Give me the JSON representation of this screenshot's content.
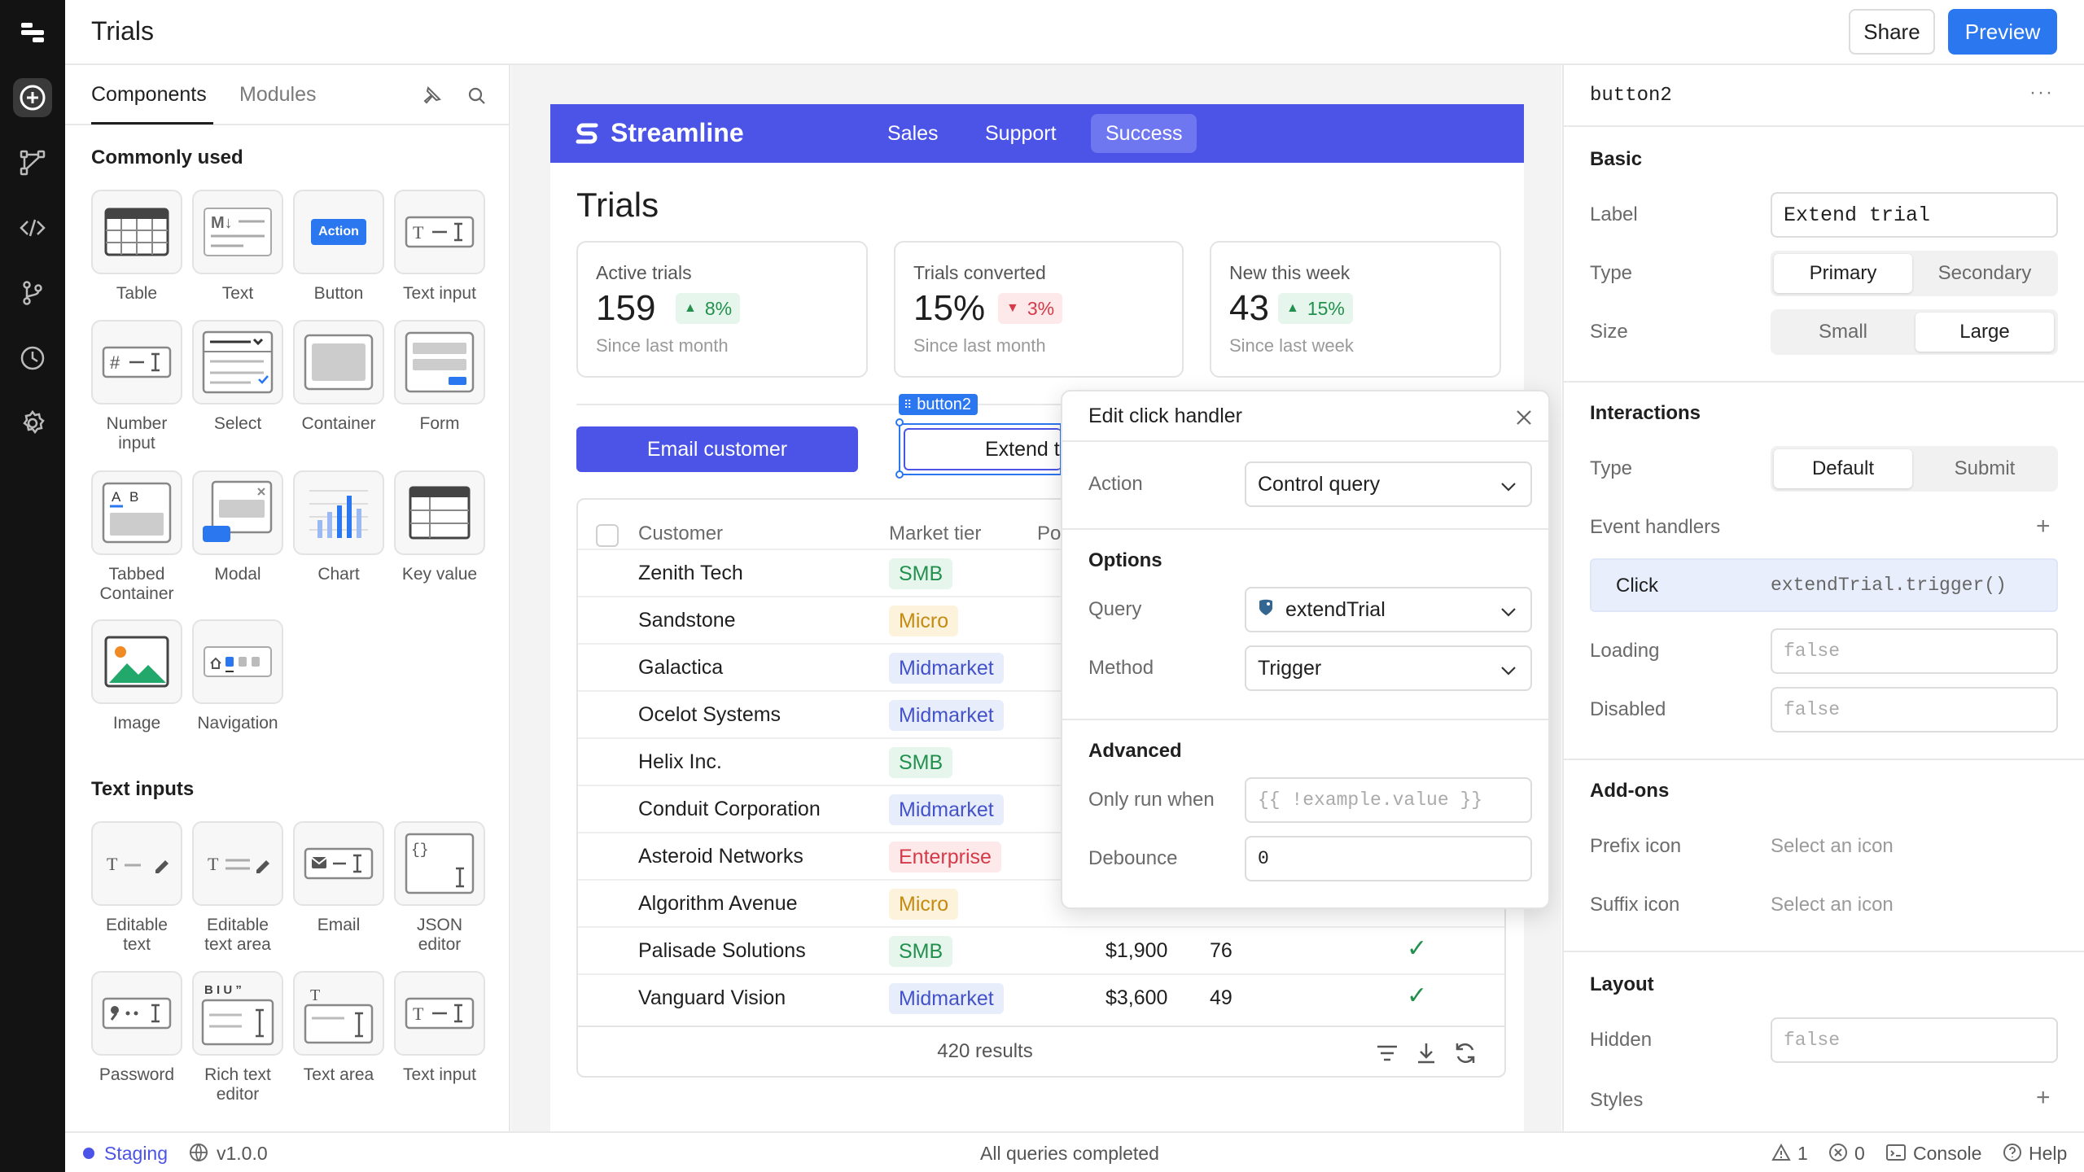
{
  "app": {
    "title": "Trials",
    "share_label": "Share",
    "preview_label": "Preview"
  },
  "rail": {
    "icons": [
      "logo-icon",
      "add-icon",
      "graph-icon",
      "code-icon",
      "branch-icon",
      "history-icon",
      "settings-icon"
    ]
  },
  "left_panel": {
    "tabs": [
      "Components",
      "Modules"
    ],
    "commonly_used_title": "Commonly used",
    "commonly_used": [
      "Table",
      "Text",
      "Button",
      "Text input",
      "Number input",
      "Select",
      "Container",
      "Form",
      "Tabbed Container",
      "Modal",
      "Chart",
      "Key value",
      "Image",
      "Navigation"
    ],
    "button_icon_text": "Action",
    "text_icon_text": "M↓",
    "text_inputs_title": "Text inputs",
    "text_inputs": [
      "Editable text",
      "Editable text area",
      "Email",
      "JSON editor",
      "Password",
      "Rich text editor",
      "Text area",
      "Text input"
    ]
  },
  "app_preview": {
    "brand": "Streamline",
    "nav": [
      "Sales",
      "Support",
      "Success"
    ],
    "nav_active": "Success",
    "heading": "Trials",
    "stats": [
      {
        "label": "Active trials",
        "value": "159",
        "delta": "8%",
        "direction": "up",
        "sub": "Since last month"
      },
      {
        "label": "Trials converted",
        "value": "15%",
        "delta": "3%",
        "direction": "down",
        "sub": "Since last month"
      },
      {
        "label": "New this week",
        "value": "43",
        "delta": "15%",
        "direction": "up",
        "sub": "Since last week"
      }
    ],
    "email_button": "Email customer",
    "extend_button": "Extend t",
    "selection_tag": "button2",
    "table": {
      "headers": [
        "Customer",
        "Market tier",
        "Po"
      ],
      "rows": [
        {
          "customer": "Zenith Tech",
          "tier": "SMB"
        },
        {
          "customer": "Sandstone",
          "tier": "Micro"
        },
        {
          "customer": "Galactica",
          "tier": "Midmarket"
        },
        {
          "customer": "Ocelot Systems",
          "tier": "Midmarket"
        },
        {
          "customer": "Helix Inc.",
          "tier": "SMB"
        },
        {
          "customer": "Conduit Corporation",
          "tier": "Midmarket"
        },
        {
          "customer": "Asteroid Networks",
          "tier": "Enterprise"
        },
        {
          "customer": "Algorithm Avenue",
          "tier": "Micro"
        },
        {
          "customer": "Palisade Solutions",
          "tier": "SMB",
          "price": "$1,900",
          "count": "76",
          "check": "✓"
        },
        {
          "customer": "Vanguard Vision",
          "tier": "Midmarket",
          "price": "$3,600",
          "count": "49",
          "check": "✓"
        }
      ],
      "footer": "420 results"
    }
  },
  "popup": {
    "title": "Edit click handler",
    "action_label": "Action",
    "action_value": "Control query",
    "options_title": "Options",
    "query_label": "Query",
    "query_value": "extendTrial",
    "method_label": "Method",
    "method_value": "Trigger",
    "advanced_title": "Advanced",
    "only_run_label": "Only run when",
    "only_run_placeholder": "{{ !example.value }}",
    "debounce_label": "Debounce",
    "debounce_value": "0"
  },
  "inspector": {
    "component_name": "button2",
    "basic_title": "Basic",
    "label_label": "Label",
    "label_value": "Extend trial",
    "type_label": "Type",
    "type_options": [
      "Primary",
      "Secondary"
    ],
    "type_selected": "Primary",
    "size_label": "Size",
    "size_options": [
      "Small",
      "Large"
    ],
    "size_selected": "Large",
    "interactions_title": "Interactions",
    "itype_label": "Type",
    "itype_options": [
      "Default",
      "Submit"
    ],
    "itype_selected": "Default",
    "event_handlers_label": "Event handlers",
    "handler_event": "Click",
    "handler_action": "extendTrial.trigger()",
    "loading_label": "Loading",
    "loading_value": "false",
    "disabled_label": "Disabled",
    "disabled_value": "false",
    "addons_title": "Add-ons",
    "prefix_label": "Prefix icon",
    "prefix_value": "Select an icon",
    "suffix_label": "Suffix icon",
    "suffix_value": "Select an icon",
    "layout_title": "Layout",
    "hidden_label": "Hidden",
    "hidden_value": "false",
    "styles_label": "Styles"
  },
  "statusbar": {
    "env": "Staging",
    "version": "v1.0.0",
    "center": "All queries completed",
    "warnings": "1",
    "errors": "0",
    "console": "Console",
    "help": "Help"
  },
  "colors": {
    "accent": "#2a77f0",
    "brand": "#4b54e6",
    "rail": "#131313"
  }
}
